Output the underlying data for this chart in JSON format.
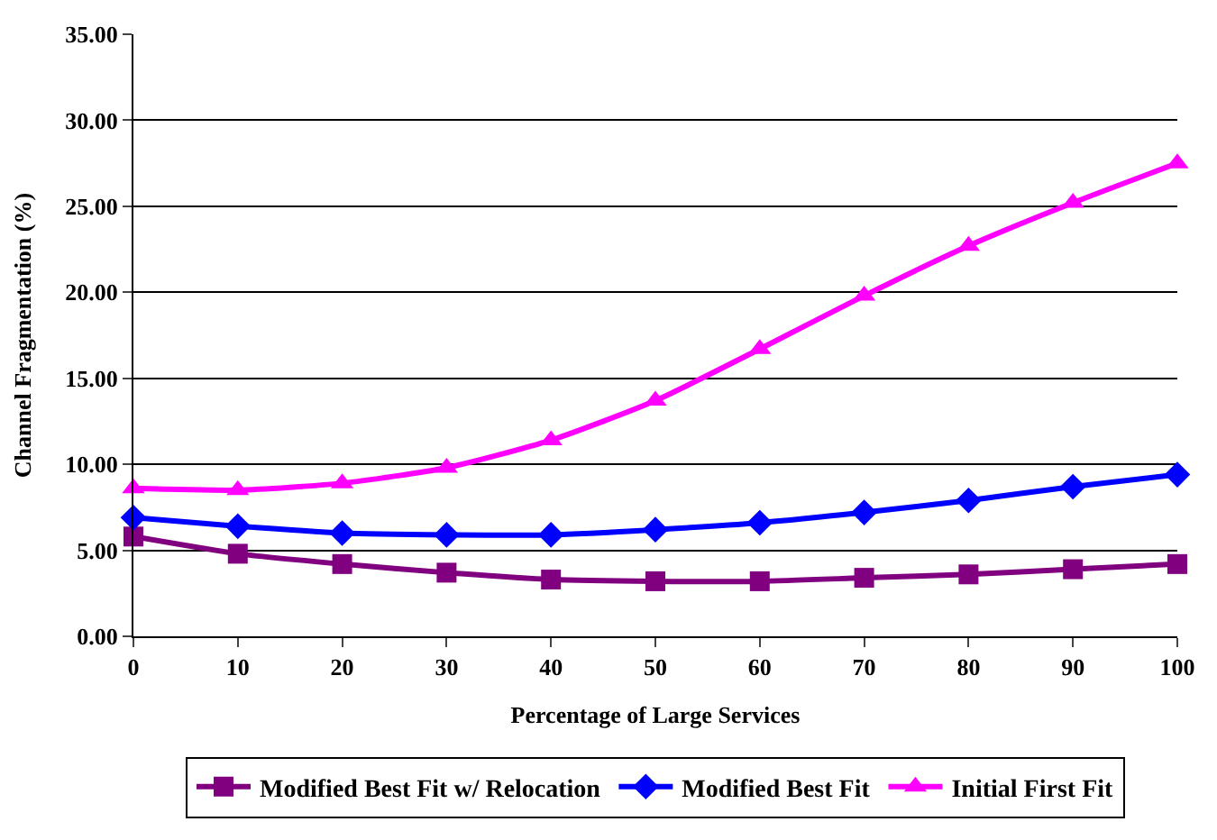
{
  "chart_data": {
    "type": "line",
    "xlabel": "Percentage of Large Services",
    "ylabel": "Channel Fragmentation (%)",
    "x": [
      0,
      10,
      20,
      30,
      40,
      50,
      60,
      70,
      80,
      90,
      100
    ],
    "series": [
      {
        "name": "Modified Best Fit w/ Relocation",
        "color": "#800080",
        "marker": "square",
        "values": [
          5.8,
          4.8,
          4.2,
          3.7,
          3.3,
          3.2,
          3.2,
          3.4,
          3.6,
          3.9,
          4.2
        ]
      },
      {
        "name": "Modified Best Fit",
        "color": "#0000ff",
        "marker": "diamond",
        "values": [
          6.9,
          6.4,
          6.0,
          5.9,
          5.9,
          6.2,
          6.6,
          7.2,
          7.9,
          8.7,
          9.4
        ]
      },
      {
        "name": "Initial First Fit",
        "color": "#ff00ff",
        "marker": "triangle",
        "values": [
          8.6,
          8.5,
          8.9,
          9.8,
          11.4,
          13.7,
          16.7,
          19.8,
          22.7,
          25.2,
          27.5
        ]
      }
    ],
    "xlim": [
      0,
      100
    ],
    "xticks": [
      0,
      10,
      20,
      30,
      40,
      50,
      60,
      70,
      80,
      90,
      100
    ],
    "ylim": [
      0,
      35
    ],
    "yticks": [
      {
        "value": 0,
        "label": "0.00"
      },
      {
        "value": 5,
        "label": "5.00"
      },
      {
        "value": 10,
        "label": "10.00"
      },
      {
        "value": 15,
        "label": "15.00"
      },
      {
        "value": 20,
        "label": "20.00"
      },
      {
        "value": 25,
        "label": "25.00"
      },
      {
        "value": 30,
        "label": "30.00"
      },
      {
        "value": 35,
        "label": "35.00"
      }
    ],
    "grid": "y",
    "legend": "bottom",
    "line_style": "solid"
  }
}
